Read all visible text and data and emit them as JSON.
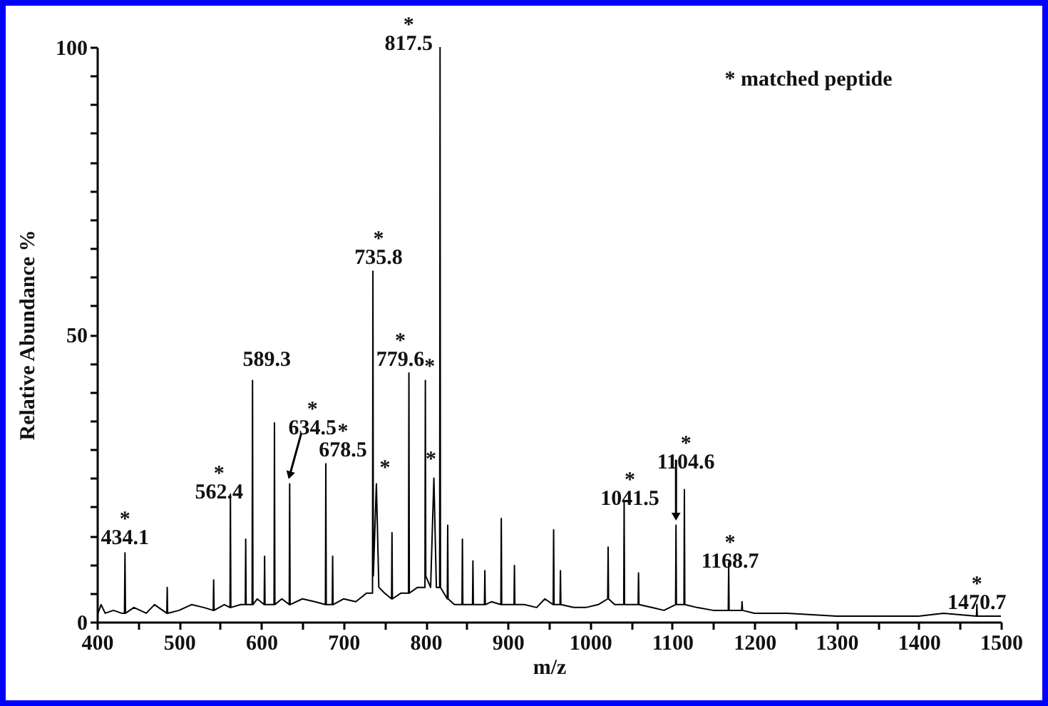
{
  "chart_data": {
    "type": "line",
    "xlabel": "m/z",
    "ylabel": "Relative Abundance %",
    "color": "#000000",
    "xlim": [
      400,
      1500
    ],
    "ylim": [
      0,
      100
    ],
    "xticks": [
      400,
      {
        "value": 450,
        "label": null
      },
      500,
      {
        "value": 550,
        "label": null
      },
      600,
      {
        "value": 650,
        "label": null
      },
      700,
      {
        "value": 750,
        "label": null
      },
      800,
      {
        "value": 850,
        "label": null
      },
      900,
      {
        "value": 950,
        "label": null
      },
      1000,
      {
        "value": 1050,
        "label": null
      },
      1100,
      {
        "value": 1150,
        "label": null
      },
      1200,
      {
        "value": 1250,
        "label": null
      },
      1300,
      {
        "value": 1350,
        "label": null
      },
      1400,
      {
        "value": 1450,
        "label": null
      },
      1500
    ],
    "yticks": [
      0,
      {
        "value": 5,
        "label": null
      },
      {
        "value": 10,
        "label": null
      },
      {
        "value": 15,
        "label": null
      },
      {
        "value": 20,
        "label": null
      },
      {
        "value": 25,
        "label": null
      },
      {
        "value": 30,
        "label": null
      },
      {
        "value": 35,
        "label": null
      },
      {
        "value": 40,
        "label": null
      },
      {
        "value": 45,
        "label": null
      },
      50,
      {
        "value": 55,
        "label": null
      },
      {
        "value": 60,
        "label": null
      },
      {
        "value": 65,
        "label": null
      },
      {
        "value": 70,
        "label": null
      },
      {
        "value": 75,
        "label": null
      },
      {
        "value": 80,
        "label": null
      },
      {
        "value": 85,
        "label": null
      },
      {
        "value": 90,
        "label": null
      },
      {
        "value": 95,
        "label": null
      },
      100
    ],
    "x": [
      400,
      405,
      410,
      420,
      430,
      433.5,
      434.1,
      434.7,
      445,
      460,
      470,
      480,
      485,
      485.5,
      486,
      500,
      515,
      530,
      541.5,
      542,
      542.5,
      555,
      561.9,
      562.4,
      562.9,
      575,
      580.5,
      581,
      581.5,
      588.8,
      589.3,
      589.8,
      595,
      603.5,
      604,
      604.5,
      615.5,
      616,
      616.5,
      625,
      634,
      634.5,
      635,
      650,
      665,
      678,
      678.5,
      679,
      686.3,
      686.8,
      687.3,
      700,
      715,
      728,
      735.3,
      735.8,
      736.3,
      740,
      743,
      750,
      758.5,
      759,
      759.5,
      770,
      779.1,
      779.6,
      780.1,
      790,
      799.1,
      799.6,
      800.1,
      806,
      810,
      813,
      817,
      817.5,
      818,
      826.3,
      826.8,
      827.3,
      835,
      844.2,
      844.7,
      845.2,
      857,
      857.5,
      858,
      871.5,
      872,
      872.5,
      880,
      891.5,
      892,
      892.5,
      907.5,
      908,
      908.5,
      920,
      935,
      945,
      955.2,
      955.7,
      956.2,
      963.5,
      964,
      964.5,
      980,
      995,
      1010,
      1021.5,
      1022,
      1022.5,
      1030,
      1041,
      1041.5,
      1042,
      1058.5,
      1059,
      1059.5,
      1075,
      1090,
      1104.1,
      1104.6,
      1105.1,
      1114.3,
      1114.8,
      1115.3,
      1130,
      1150,
      1168.2,
      1168.7,
      1169.2,
      1184.5,
      1185,
      1185.5,
      1200,
      1240,
      1300,
      1350,
      1400,
      1430,
      1470.2,
      1470.7,
      1471.2,
      1500
    ],
    "values": [
      1,
      3,
      1.5,
      2,
      1.5,
      1.5,
      12,
      1.5,
      2.5,
      1.5,
      3,
      2,
      1.5,
      6,
      1.5,
      2,
      3,
      2.5,
      2,
      7.3,
      2,
      3,
      2.5,
      22.2,
      2.5,
      3,
      3,
      14.4,
      3,
      3,
      42,
      3,
      4,
      3,
      11.4,
      3,
      3,
      34.6,
      3,
      4,
      3,
      24,
      3,
      4,
      3.5,
      3,
      27.5,
      3,
      3,
      11.4,
      3,
      4,
      3.5,
      5,
      5,
      61,
      8,
      24,
      6,
      5,
      4,
      15.5,
      4,
      5,
      5,
      43.3,
      5,
      6,
      6,
      42,
      8,
      6,
      25,
      6,
      6,
      100,
      6,
      4,
      16.8,
      4,
      3,
      3,
      14.4,
      3,
      3,
      10.6,
      3,
      3,
      8.9,
      3,
      3.5,
      3,
      18,
      3,
      3,
      9.8,
      3,
      3,
      2.5,
      4,
      3,
      16,
      3,
      3,
      8.9,
      3,
      2.5,
      2.5,
      3,
      4,
      13,
      4,
      3,
      3,
      21.1,
      3,
      3,
      8.5,
      3,
      2.5,
      2,
      3,
      16.8,
      3,
      3,
      23,
      3,
      2.5,
      2,
      2,
      10.2,
      2,
      2,
      3.5,
      2,
      1.5,
      1.5,
      1,
      1,
      1,
      1.5,
      1,
      3,
      1,
      1
    ],
    "annotations": [
      {
        "text": "*\n434.1",
        "x": 434.1,
        "y": 12
      },
      {
        "text": "*\n562.4",
        "x": 562.4,
        "y": 22.2
      },
      {
        "text": "589.3",
        "x": 589.3,
        "y": 42
      },
      {
        "text": "*\n634.5",
        "x": 634.5,
        "y": 24
      },
      {
        "text": "*\n678.5",
        "x": 678.5,
        "y": 27.5
      },
      {
        "text": "*\n735.8",
        "x": 735.8,
        "y": 61
      },
      {
        "text": "*\n779.6",
        "x": 779.6,
        "y": 43.3
      },
      {
        "text": "*\n817.5",
        "x": 817.5,
        "y": 100
      },
      {
        "text": "*\n1041.5",
        "x": 1041.5,
        "y": 21.1
      },
      {
        "text": "*\n1104.6",
        "x": 1104.6,
        "y": 16.8
      },
      {
        "text": "*\n1168.7",
        "x": 1168.7,
        "y": 10.2
      },
      {
        "text": "*\n1470.7",
        "x": 1470.7,
        "y": 3
      },
      {
        "text": "*",
        "x": 740,
        "y": 24
      },
      {
        "text": "*",
        "x": 799.6,
        "y": 42
      },
      {
        "text": "*",
        "x": 810,
        "y": 25
      },
      "* matched peptide"
    ]
  }
}
